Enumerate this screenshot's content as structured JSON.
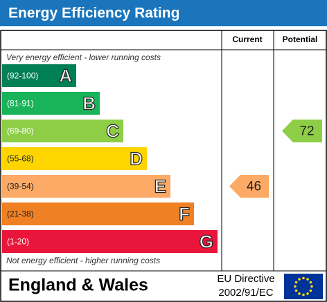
{
  "title": "Energy Efficiency Rating",
  "columns": {
    "current": "Current",
    "potential": "Potential"
  },
  "top_note": "Very energy efficient - lower running costs",
  "bottom_note": "Not energy efficient - higher running costs",
  "bands": [
    {
      "range": "(92-100)",
      "letter": "A",
      "color": "#008054"
    },
    {
      "range": "(81-91)",
      "letter": "B",
      "color": "#19b459"
    },
    {
      "range": "(69-80)",
      "letter": "C",
      "color": "#8dce46"
    },
    {
      "range": "(55-68)",
      "letter": "D",
      "color": "#ffd500"
    },
    {
      "range": "(39-54)",
      "letter": "E",
      "color": "#fcaa65"
    },
    {
      "range": "(21-38)",
      "letter": "F",
      "color": "#ef8023"
    },
    {
      "range": "(1-20)",
      "letter": "G",
      "color": "#e9153b"
    }
  ],
  "current": 46,
  "potential": 72,
  "footer": {
    "region": "England & Wales",
    "directive_line1": "EU Directive",
    "directive_line2": "2002/91/EC"
  }
}
